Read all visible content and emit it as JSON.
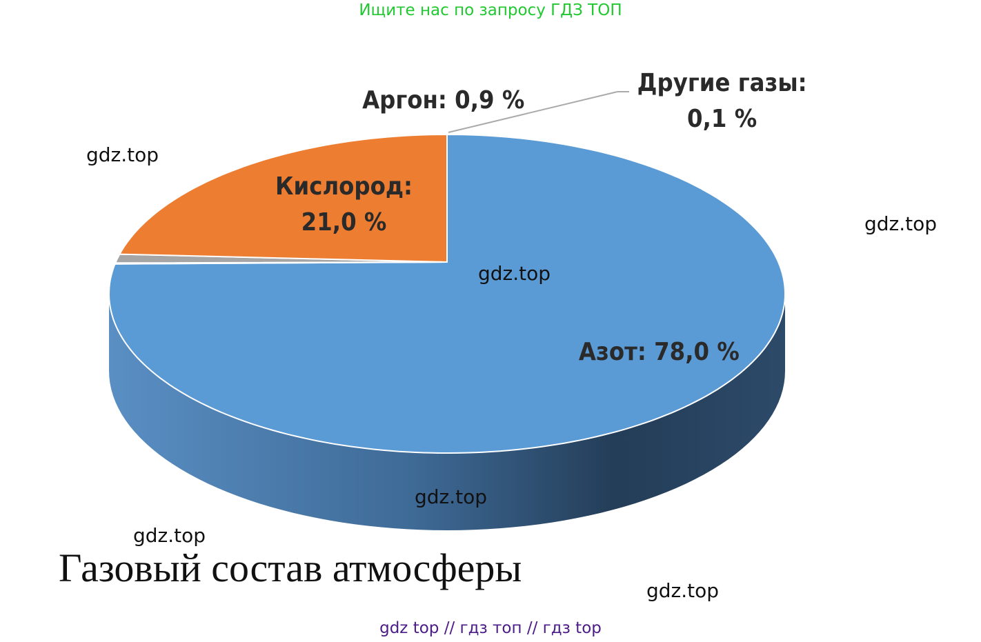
{
  "banner": "Ищите нас по запросу ГДЗ ТОП",
  "footer": "gdz top  //  гдз топ  //  гдз top",
  "watermarks": [
    "gdz.top",
    "gdz.top",
    "gdz.top",
    "gdz.top",
    "gdz.top",
    "gdz.top"
  ],
  "chart_data": {
    "type": "pie",
    "style": "3d",
    "title": "Газовый состав атмосферы",
    "unit": "%",
    "slices": [
      {
        "name": "Азот",
        "value": 78.0,
        "label": "Азот: 78,0 %",
        "color": "#5b9bd5"
      },
      {
        "name": "Другие газы",
        "value": 0.1,
        "label_line1": "Другие газы:",
        "label_line2": "0,1 %",
        "color": "#8fa0b0"
      },
      {
        "name": "Аргон",
        "value": 0.9,
        "label": "Аргон: 0,9 %",
        "color": "#a5a5a5"
      },
      {
        "name": "Кислород",
        "value": 21.0,
        "label_line1": "Кислород:",
        "label_line2": "21,0 %",
        "color": "#ed7d31"
      }
    ]
  }
}
